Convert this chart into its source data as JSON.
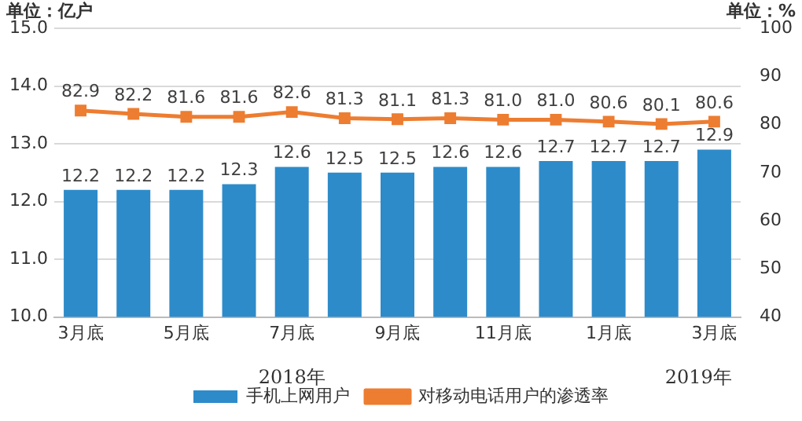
{
  "chart_data": {
    "type": "bar",
    "ylabel": "单位：亿户",
    "y2label": "单位：%",
    "categories": [
      "3月底",
      null,
      "5月底",
      null,
      "7月底",
      null,
      "9月底",
      null,
      "11月底",
      null,
      "1月底",
      null,
      "3月底"
    ],
    "series": [
      {
        "name": "手机上网用户",
        "color": "#2e8bc9",
        "values": [
          12.2,
          12.2,
          12.2,
          12.3,
          12.6,
          12.5,
          12.5,
          12.6,
          12.6,
          12.7,
          12.7,
          12.7,
          12.9
        ]
      },
      {
        "name": "对移动电话用户的渗透率",
        "type": "line",
        "axis": "y2",
        "color": "#ed7d31",
        "marker": "square",
        "values": [
          82.9,
          82.2,
          81.6,
          81.6,
          82.6,
          81.3,
          81.1,
          81.3,
          81.0,
          81.0,
          80.6,
          80.1,
          80.6
        ],
        "value_labels": [
          "82.9",
          "82.2",
          "81.6",
          "81.6",
          "82.6",
          "81.3",
          "81.1",
          "81.3",
          "81.0",
          "81.0",
          "80.6",
          "80.1",
          "80.6"
        ]
      }
    ],
    "ylim": [
      10,
      15
    ],
    "yticks": [
      {
        "value": 10,
        "label": "10.0"
      },
      {
        "value": 11,
        "label": "11.0"
      },
      {
        "value": 12,
        "label": "12.0"
      },
      {
        "value": 13,
        "label": "13.0"
      },
      {
        "value": 14,
        "label": "14.0"
      },
      {
        "value": 15,
        "label": "15.0"
      }
    ],
    "y2lim": [
      40,
      100
    ],
    "y2ticks": [
      40,
      50,
      60,
      70,
      80,
      90,
      100
    ],
    "grid": "y",
    "legend": "bottom",
    "data_labels": true,
    "annotations": [
      "2018年",
      "2019年"
    ]
  }
}
